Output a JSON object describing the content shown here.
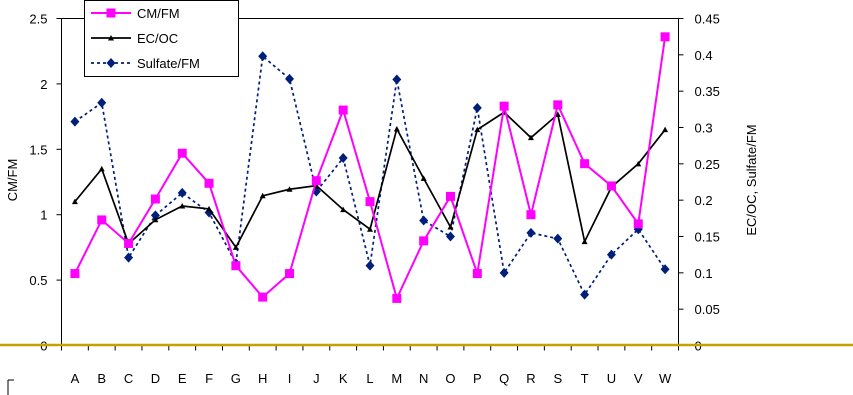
{
  "chart_data": {
    "type": "line",
    "categories": [
      "A",
      "B",
      "C",
      "D",
      "E",
      "F",
      "G",
      "H",
      "I",
      "J",
      "K",
      "L",
      "M",
      "N",
      "O",
      "P",
      "Q",
      "R",
      "S",
      "T",
      "U",
      "V",
      "W"
    ],
    "ylabel": "CM/FM",
    "y2label": "EC/OC, Sulfate/FM",
    "ylim": [
      0,
      2.5
    ],
    "y2lim": [
      0,
      0.45
    ],
    "yticks": [
      "0",
      "0.5",
      "1",
      "1.5",
      "2",
      "2.5"
    ],
    "y2ticks": [
      "0",
      "0.05",
      "0.1",
      "0.15",
      "0.2",
      "0.25",
      "0.3",
      "0.35",
      "0.4",
      "0.45"
    ],
    "grid": false,
    "legend_position": "top-left",
    "series": [
      {
        "name": "CM/FM",
        "axis": "left",
        "color": "#ff00ff",
        "marker": "square",
        "dash": "solid",
        "values": [
          0.55,
          0.96,
          0.78,
          1.12,
          1.47,
          1.24,
          0.61,
          0.37,
          0.55,
          1.26,
          1.8,
          1.1,
          0.36,
          0.8,
          1.14,
          0.55,
          1.83,
          1.0,
          1.84,
          1.39,
          1.22,
          0.93,
          2.36
        ]
      },
      {
        "name": "EC/OC",
        "axis": "right",
        "color": "#000000",
        "marker": "triangle",
        "dash": "solid",
        "values": [
          0.198,
          0.243,
          0.14,
          0.173,
          0.192,
          0.188,
          0.135,
          0.206,
          0.215,
          0.22,
          0.187,
          0.16,
          0.298,
          0.23,
          0.163,
          0.297,
          0.321,
          0.286,
          0.318,
          0.143,
          0.218,
          0.25,
          0.297
        ]
      },
      {
        "name": "Sulfate/FM",
        "axis": "right",
        "color": "#001f7a",
        "marker": "diamond",
        "dash": "dotted",
        "values": [
          0.308,
          0.334,
          0.121,
          0.179,
          0.21,
          0.183,
          0.113,
          0.398,
          0.367,
          0.212,
          0.258,
          0.11,
          0.366,
          0.172,
          0.15,
          0.327,
          0.1,
          0.155,
          0.147,
          0.07,
          0.125,
          0.16,
          0.105
        ]
      }
    ]
  },
  "colors": {
    "baseline": "#c8a000",
    "axis": "#000000"
  }
}
